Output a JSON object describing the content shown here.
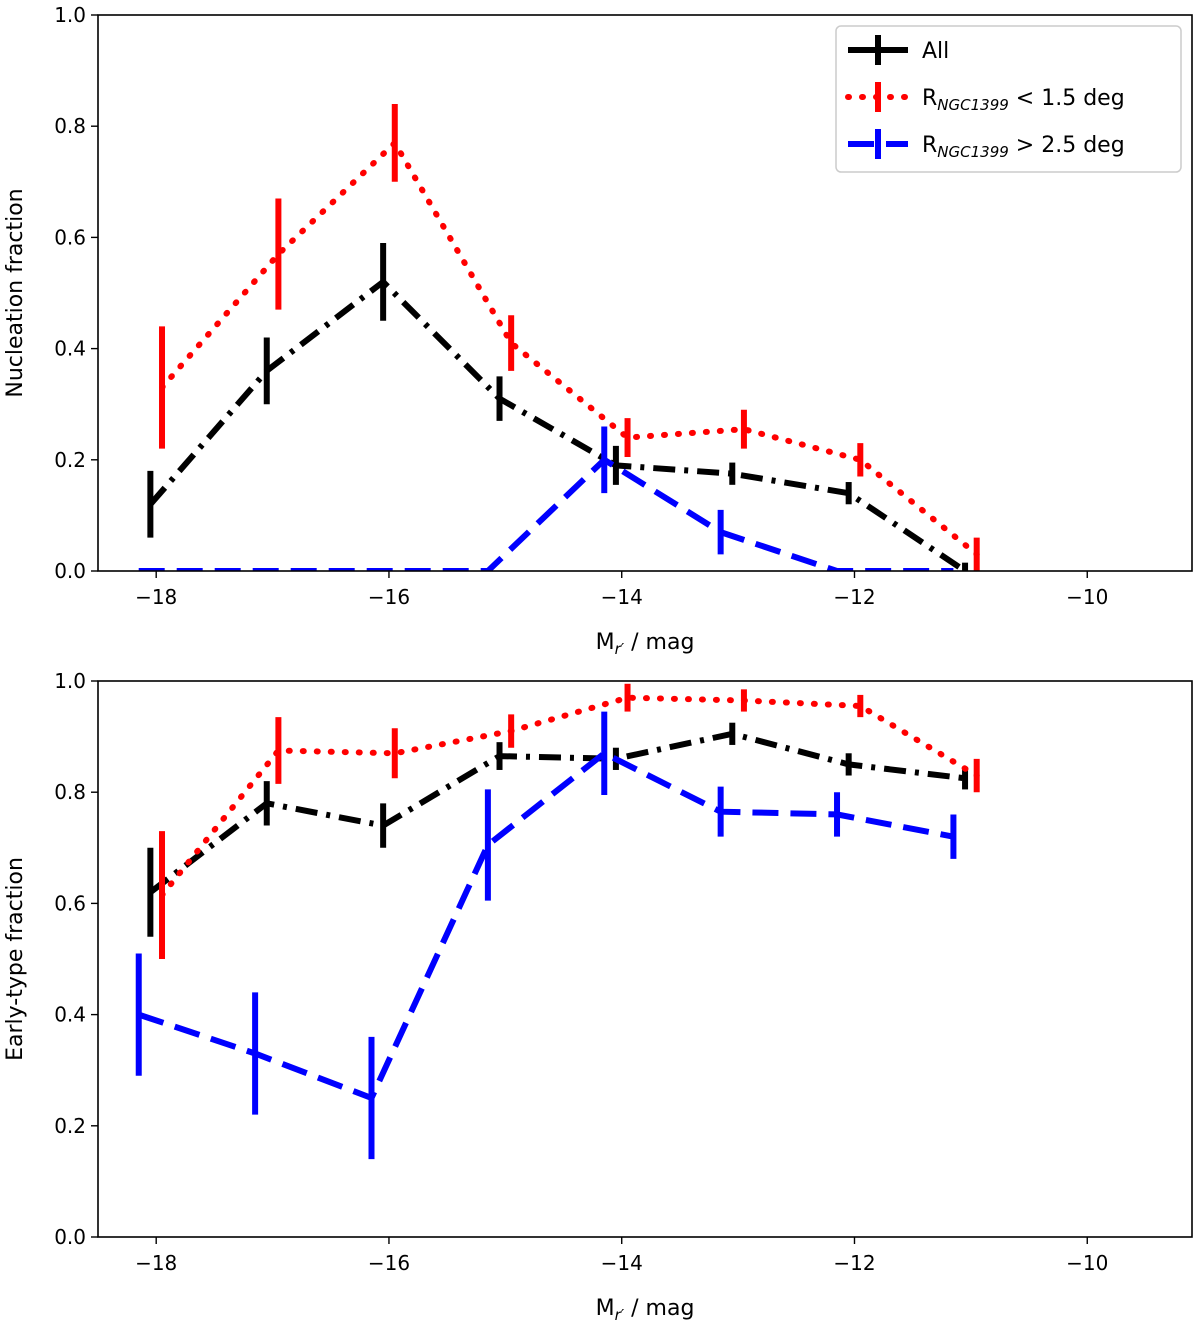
{
  "chart_data": [
    {
      "type": "line",
      "ylabel": "Nucleation fraction",
      "xlabel_main": "M",
      "xlabel_sub": "r′",
      "xlabel_tail": " / mag",
      "xlim": [
        -18.5,
        -9.1
      ],
      "ylim": [
        0.0,
        1.0
      ],
      "xticks": [
        -18,
        -16,
        -14,
        -12,
        -10
      ],
      "xtick_labels": [
        "−18",
        "−16",
        "−14",
        "−12",
        "−10"
      ],
      "yticks": [
        0.0,
        0.2,
        0.4,
        0.6,
        0.8,
        1.0
      ],
      "ytick_labels": [
        "0.0",
        "0.2",
        "0.4",
        "0.6",
        "0.8",
        "1.0"
      ],
      "legend": {
        "location": "top-right",
        "entries": [
          {
            "main": "All",
            "sub": "",
            "tail": ""
          },
          {
            "main": "R",
            "sub": "NGC1399",
            "tail": " < 1.5 deg"
          },
          {
            "main": "R",
            "sub": "NGC1399",
            "tail": " > 2.5 deg"
          }
        ]
      },
      "series": [
        {
          "name": "All",
          "color": "#000000",
          "style": "dashdot",
          "x": [
            -18.05,
            -17.05,
            -16.05,
            -15.05,
            -14.05,
            -13.05,
            -12.05,
            -11.05
          ],
          "y": [
            0.12,
            0.36,
            0.52,
            0.31,
            0.19,
            0.175,
            0.14,
            0.0
          ],
          "err": [
            0.06,
            0.06,
            0.07,
            0.04,
            0.035,
            0.02,
            0.02,
            0.015
          ]
        },
        {
          "name": "R_NGC1399 < 1.5 deg",
          "color": "#ff0000",
          "style": "dotted",
          "x": [
            -17.95,
            -16.95,
            -15.95,
            -14.95,
            -13.95,
            -12.95,
            -11.95,
            -10.95
          ],
          "y": [
            0.33,
            0.57,
            0.77,
            0.41,
            0.24,
            0.255,
            0.2,
            0.03
          ],
          "err": [
            0.11,
            0.1,
            0.07,
            0.05,
            0.035,
            0.035,
            0.03,
            0.03
          ]
        },
        {
          "name": "R_NGC1399 > 2.5 deg",
          "color": "#0000ff",
          "style": "dashed",
          "x": [
            -18.15,
            -17.15,
            -16.15,
            -15.15,
            -14.15,
            -13.15,
            -12.15,
            -11.15
          ],
          "y": [
            0.0,
            0.0,
            0.0,
            0.0,
            0.2,
            0.07,
            0.0,
            0.0
          ],
          "err": [
            0,
            0,
            0,
            0,
            0.06,
            0.04,
            0,
            0
          ]
        }
      ]
    },
    {
      "type": "line",
      "ylabel": "Early-type fraction",
      "xlabel_main": "M",
      "xlabel_sub": "r′",
      "xlabel_tail": " / mag",
      "xlim": [
        -18.5,
        -9.1
      ],
      "ylim": [
        0.0,
        1.0
      ],
      "xticks": [
        -18,
        -16,
        -14,
        -12,
        -10
      ],
      "xtick_labels": [
        "−18",
        "−16",
        "−14",
        "−12",
        "−10"
      ],
      "yticks": [
        0.0,
        0.2,
        0.4,
        0.6,
        0.8,
        1.0
      ],
      "ytick_labels": [
        "0.0",
        "0.2",
        "0.4",
        "0.6",
        "0.8",
        "1.0"
      ],
      "series": [
        {
          "name": "All",
          "color": "#000000",
          "style": "dashdot",
          "x": [
            -18.05,
            -17.05,
            -16.05,
            -15.05,
            -14.05,
            -13.05,
            -12.05,
            -11.05
          ],
          "y": [
            0.62,
            0.78,
            0.74,
            0.865,
            0.86,
            0.905,
            0.85,
            0.825
          ],
          "err": [
            0.08,
            0.04,
            0.04,
            0.025,
            0.02,
            0.02,
            0.02,
            0.02
          ]
        },
        {
          "name": "R_NGC1399 < 1.5 deg",
          "color": "#ff0000",
          "style": "dotted",
          "x": [
            -17.95,
            -16.95,
            -15.95,
            -14.95,
            -13.95,
            -12.95,
            -11.95,
            -10.95
          ],
          "y": [
            0.615,
            0.875,
            0.87,
            0.91,
            0.97,
            0.965,
            0.955,
            0.83
          ],
          "err": [
            0.115,
            0.06,
            0.045,
            0.03,
            0.025,
            0.02,
            0.02,
            0.03
          ]
        },
        {
          "name": "R_NGC1399 > 2.5 deg",
          "color": "#0000ff",
          "style": "dashed",
          "x": [
            -18.15,
            -17.15,
            -16.15,
            -15.15,
            -14.15,
            -13.15,
            -12.15,
            -11.15
          ],
          "y": [
            0.4,
            0.33,
            0.25,
            0.705,
            0.87,
            0.765,
            0.76,
            0.72
          ],
          "err": [
            0.11,
            0.11,
            0.11,
            0.1,
            0.075,
            0.045,
            0.04,
            0.04
          ]
        }
      ]
    }
  ]
}
